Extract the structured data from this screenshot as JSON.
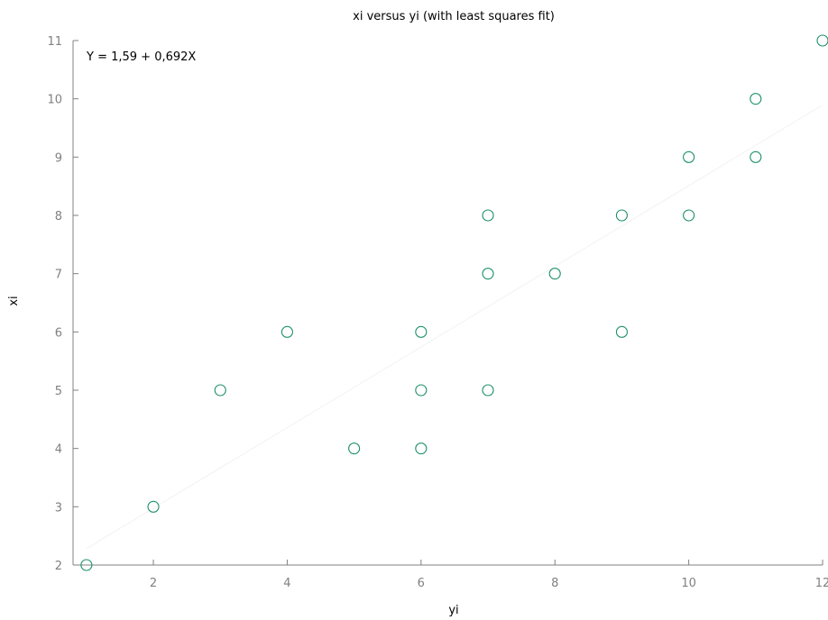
{
  "chart_data": {
    "type": "scatter",
    "title": "xi versus yi (with least squares fit)",
    "xlabel": "yi",
    "ylabel": "xi",
    "xlim": [
      0.8,
      12
    ],
    "ylim": [
      2,
      11
    ],
    "xticks": [
      2,
      4,
      6,
      8,
      10,
      12
    ],
    "yticks": [
      2,
      3,
      4,
      5,
      6,
      7,
      8,
      9,
      10,
      11
    ],
    "grid": false,
    "annotation": "Y = 1,59 + 0,692X",
    "fit": {
      "intercept": 1.59,
      "slope": 0.692,
      "x_range": [
        1,
        12
      ]
    },
    "series": [
      {
        "x": [
          1,
          2,
          3,
          4,
          5,
          6,
          6,
          6,
          7,
          7,
          7,
          8,
          9,
          9,
          10,
          10,
          11,
          11,
          12
        ],
        "y": [
          2,
          3,
          5,
          6,
          4,
          6,
          5,
          4,
          8,
          7,
          5,
          7,
          8,
          6,
          9,
          8,
          10,
          9,
          11
        ]
      }
    ],
    "colors": {
      "marker": "#1b8f6a",
      "fit_line": "#f2f2f2",
      "axis": "#808080"
    }
  }
}
